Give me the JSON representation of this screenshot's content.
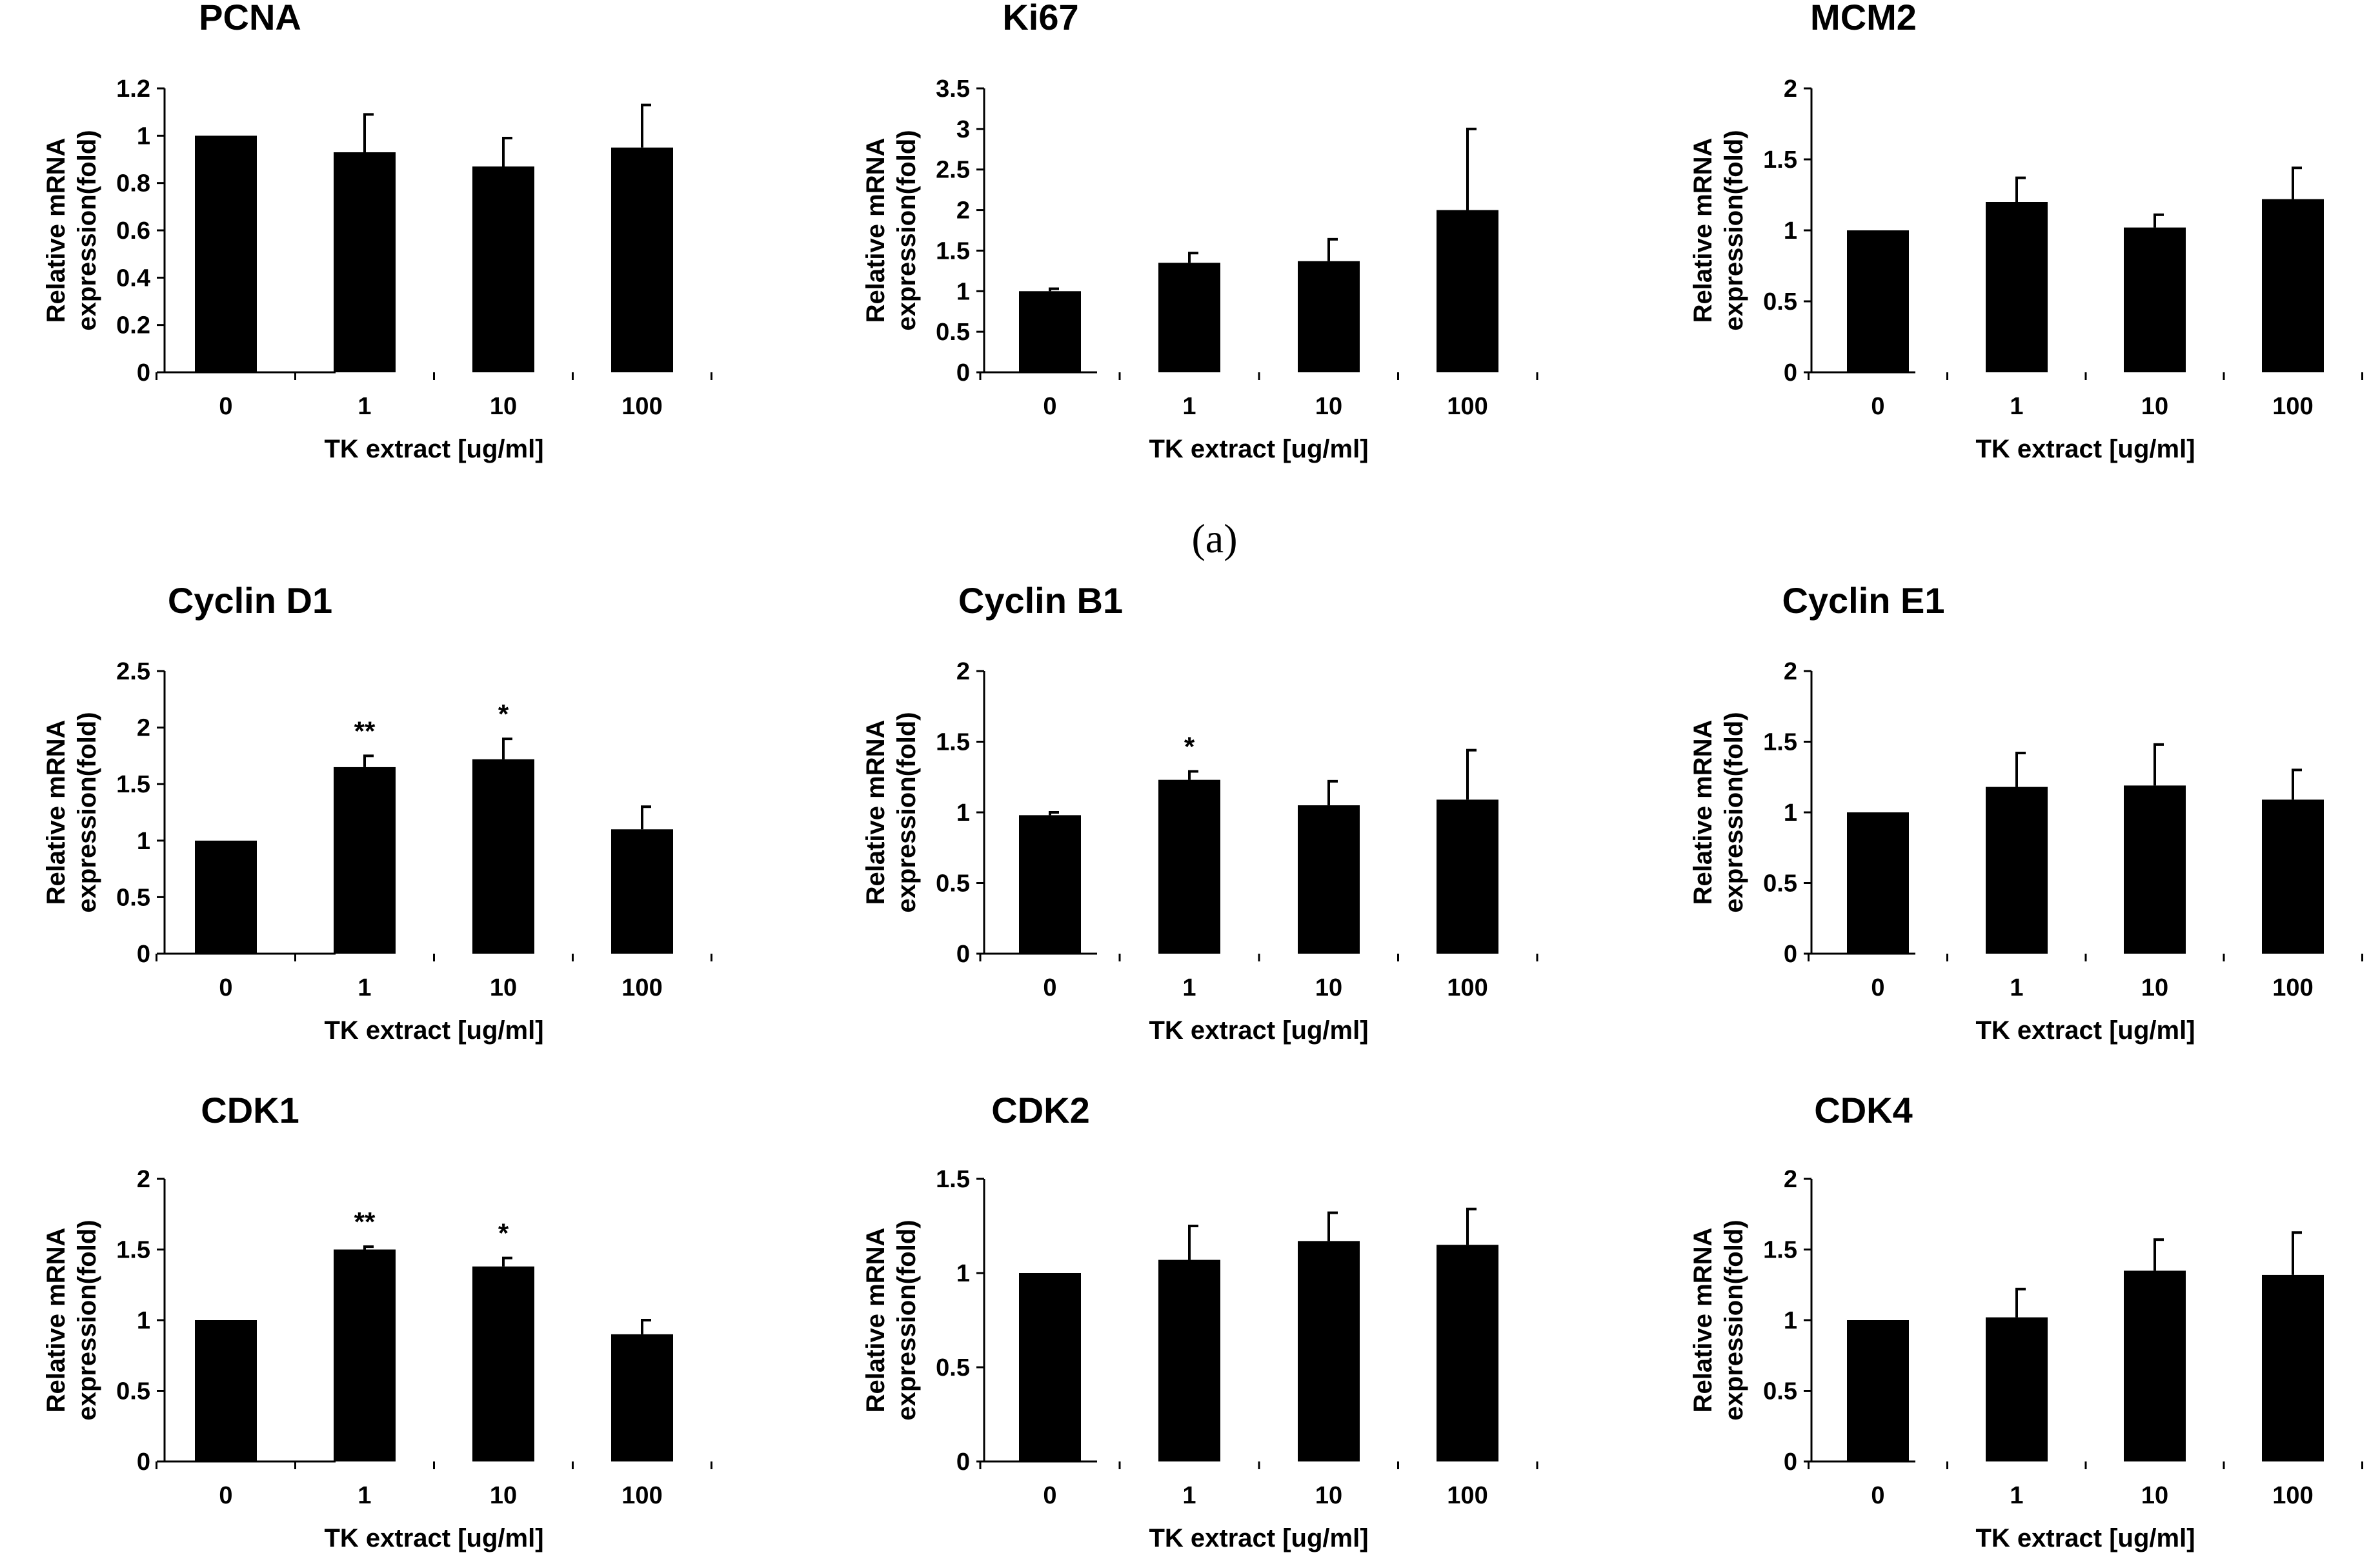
{
  "panel_label": "(a)",
  "chart_data": [
    {
      "type": "bar",
      "title": "PCNA",
      "categories": [
        "0",
        "1",
        "10",
        "100"
      ],
      "values": [
        1.0,
        0.93,
        0.87,
        0.95
      ],
      "errors": [
        0,
        0.16,
        0.12,
        0.18
      ],
      "sig": [
        "",
        "",
        "",
        ""
      ],
      "ylim": [
        0,
        1.2
      ],
      "yticks": [
        "0",
        "0.2",
        "0.4",
        "0.6",
        "0.8",
        "1",
        "1.2"
      ],
      "ylabel": [
        "Relative mRNA",
        "expression(fold)"
      ],
      "xlabel": "TK extract [ug/ml]"
    },
    {
      "type": "bar",
      "title": "Ki67",
      "categories": [
        "0",
        "1",
        "10",
        "100"
      ],
      "values": [
        1.0,
        1.35,
        1.37,
        2.0
      ],
      "errors": [
        0.03,
        0.12,
        0.27,
        1.0
      ],
      "sig": [
        "",
        "",
        "",
        ""
      ],
      "ylim": [
        0,
        3.5
      ],
      "yticks": [
        "0",
        "0.5",
        "1",
        "1.5",
        "2",
        "2.5",
        "3",
        "3.5"
      ],
      "ylabel": [
        "Relative mRNA",
        "expression(fold)"
      ],
      "xlabel": "TK extract [ug/ml]"
    },
    {
      "type": "bar",
      "title": "MCM2",
      "categories": [
        "0",
        "1",
        "10",
        "100"
      ],
      "values": [
        1.0,
        1.2,
        1.02,
        1.22
      ],
      "errors": [
        0,
        0.17,
        0.09,
        0.22
      ],
      "sig": [
        "",
        "",
        "",
        ""
      ],
      "ylim": [
        0,
        2
      ],
      "yticks": [
        "0",
        "0.5",
        "1",
        "1.5",
        "2"
      ],
      "ylabel": [
        "Relative mRNA",
        "expression(fold)"
      ],
      "xlabel": "TK extract [ug/ml]"
    },
    {
      "type": "bar",
      "title": "Cyclin D1",
      "categories": [
        "0",
        "1",
        "10",
        "100"
      ],
      "values": [
        1.0,
        1.65,
        1.72,
        1.1
      ],
      "errors": [
        0,
        0.1,
        0.18,
        0.2
      ],
      "sig": [
        "",
        "**",
        "*",
        ""
      ],
      "ylim": [
        0,
        2.5
      ],
      "yticks": [
        "0",
        "0.5",
        "1",
        "1.5",
        "2",
        "2.5"
      ],
      "ylabel": [
        "Relative mRNA",
        "expression(fold)"
      ],
      "xlabel": "TK extract [ug/ml]"
    },
    {
      "type": "bar",
      "title": "Cyclin B1",
      "categories": [
        "0",
        "1",
        "10",
        "100"
      ],
      "values": [
        0.98,
        1.23,
        1.05,
        1.09
      ],
      "errors": [
        0.02,
        0.06,
        0.17,
        0.35
      ],
      "sig": [
        "",
        "*",
        "",
        ""
      ],
      "ylim": [
        0,
        2
      ],
      "yticks": [
        "0",
        "0.5",
        "1",
        "1.5",
        "2"
      ],
      "ylabel": [
        "Relative mRNA",
        "expression(fold)"
      ],
      "xlabel": "TK extract [ug/ml]"
    },
    {
      "type": "bar",
      "title": "Cyclin E1",
      "categories": [
        "0",
        "1",
        "10",
        "100"
      ],
      "values": [
        1.0,
        1.18,
        1.19,
        1.09
      ],
      "errors": [
        0,
        0.24,
        0.29,
        0.21
      ],
      "sig": [
        "",
        "",
        "",
        ""
      ],
      "ylim": [
        0,
        2
      ],
      "yticks": [
        "0",
        "0.5",
        "1",
        "1.5",
        "2"
      ],
      "ylabel": [
        "Relative mRNA",
        "expression(fold)"
      ],
      "xlabel": "TK extract [ug/ml]"
    },
    {
      "type": "bar",
      "title": "CDK1",
      "categories": [
        "0",
        "1",
        "10",
        "100"
      ],
      "values": [
        1.0,
        1.5,
        1.38,
        0.9
      ],
      "errors": [
        0,
        0.02,
        0.06,
        0.1
      ],
      "sig": [
        "",
        "**",
        "*",
        ""
      ],
      "ylim": [
        0,
        2
      ],
      "yticks": [
        "0",
        "0.5",
        "1",
        "1.5",
        "2"
      ],
      "ylabel": [
        "Relative mRNA",
        "expression(fold)"
      ],
      "xlabel": "TK extract [ug/ml]"
    },
    {
      "type": "bar",
      "title": "CDK2",
      "categories": [
        "0",
        "1",
        "10",
        "100"
      ],
      "values": [
        1.0,
        1.07,
        1.17,
        1.15
      ],
      "errors": [
        0,
        0.18,
        0.15,
        0.19
      ],
      "sig": [
        "",
        "",
        "",
        ""
      ],
      "ylim": [
        0,
        1.5
      ],
      "yticks": [
        "0",
        "0.5",
        "1",
        "1.5"
      ],
      "ylabel": [
        "Relative mRNA",
        "expression(fold)"
      ],
      "xlabel": "TK extract [ug/ml]"
    },
    {
      "type": "bar",
      "title": "CDK4",
      "categories": [
        "0",
        "1",
        "10",
        "100"
      ],
      "values": [
        1.0,
        1.02,
        1.35,
        1.32
      ],
      "errors": [
        0,
        0.2,
        0.22,
        0.3
      ],
      "sig": [
        "",
        "",
        "",
        ""
      ],
      "ylim": [
        0,
        2
      ],
      "yticks": [
        "0",
        "0.5",
        "1",
        "1.5",
        "2"
      ],
      "ylabel": [
        "Relative mRNA",
        "expression(fold)"
      ],
      "xlabel": "TK extract [ug/ml]"
    }
  ]
}
